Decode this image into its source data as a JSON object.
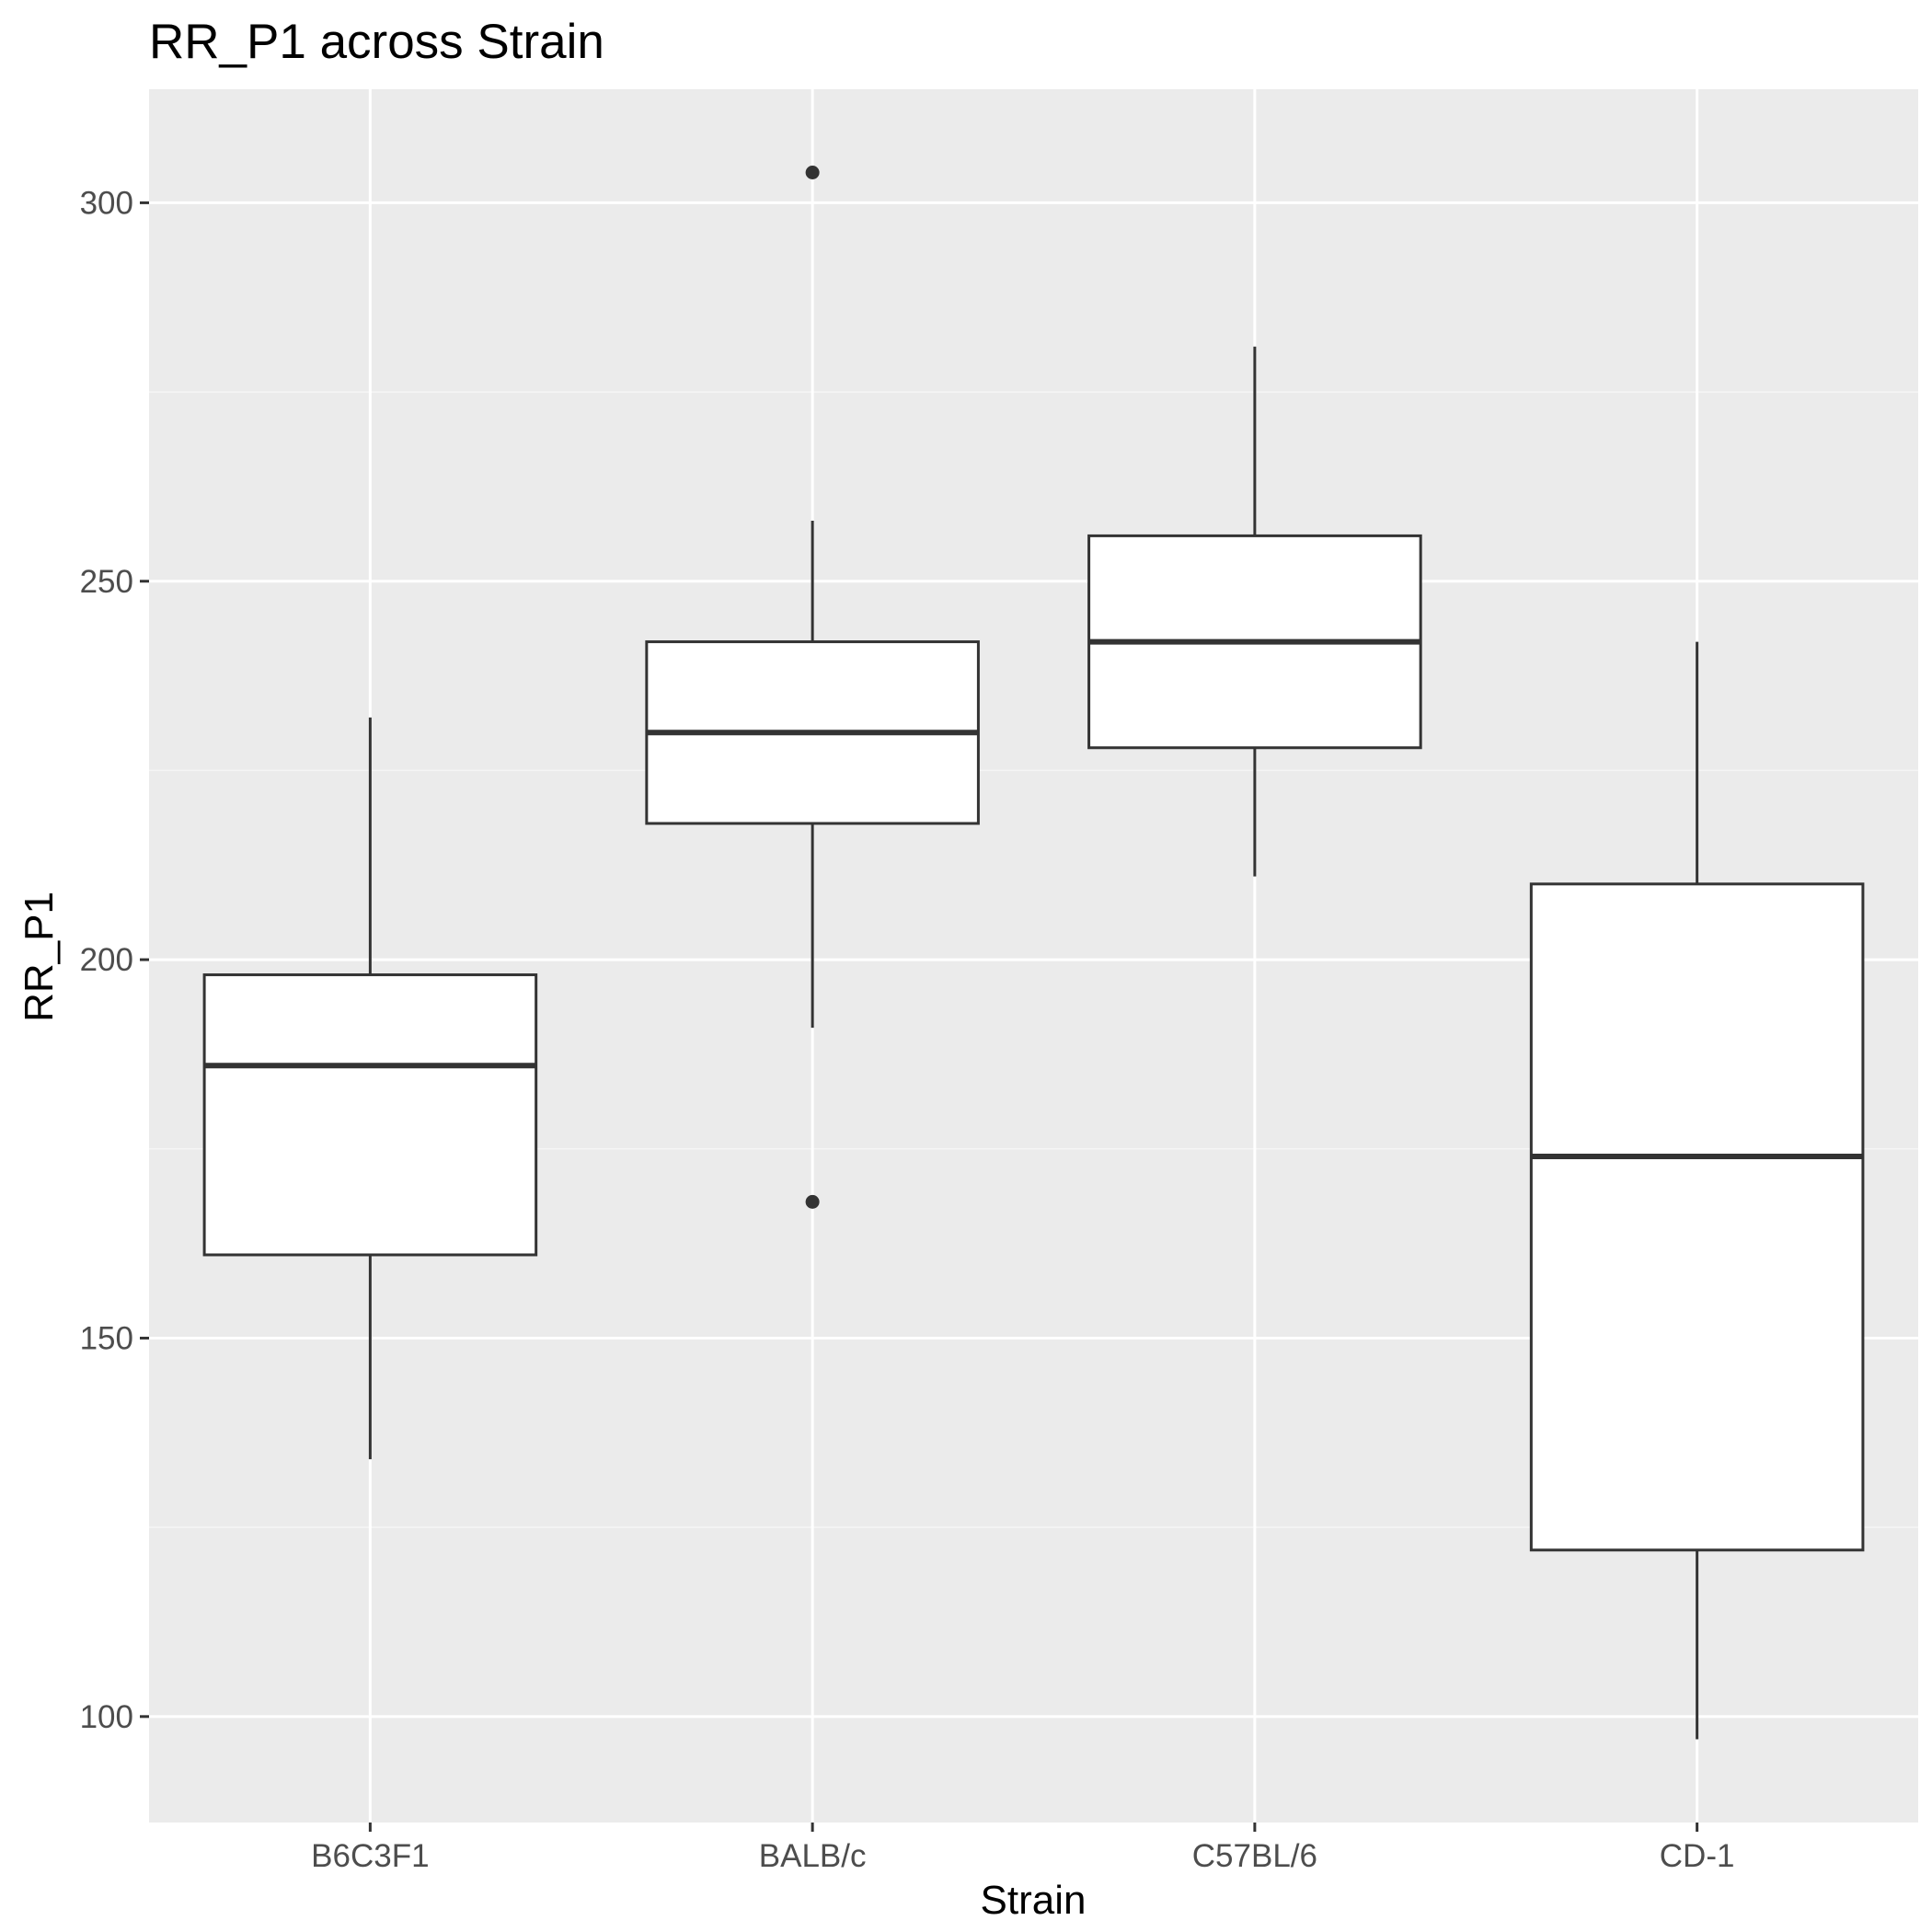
{
  "chart_data": {
    "type": "box",
    "title": "RR_P1 across Strain",
    "xlabel": "Strain",
    "ylabel": "RR_P1",
    "categories": [
      "B6C3F1",
      "BALB/c",
      "C57BL/6",
      "CD-1"
    ],
    "ylim": [
      86,
      315
    ],
    "y_ticks": [
      100,
      150,
      200,
      250,
      300
    ],
    "y_tick_labels": [
      "100",
      "150",
      "200",
      "250",
      "300"
    ],
    "grid": true,
    "legend": "none",
    "boxes": [
      {
        "category": "B6C3F1",
        "whisker_low": 134,
        "q1": 161,
        "median": 186,
        "q3": 198,
        "whisker_high": 232,
        "outliers": []
      },
      {
        "category": "BALB/c",
        "whisker_low": 191,
        "q1": 218,
        "median": 230,
        "q3": 242,
        "whisker_high": 258,
        "outliers": [
          168,
          304
        ]
      },
      {
        "category": "C57BL/6",
        "whisker_low": 211,
        "q1": 228,
        "median": 242,
        "q3": 256,
        "whisker_high": 281,
        "outliers": []
      },
      {
        "category": "CD-1",
        "whisker_low": 97,
        "q1": 122,
        "median": 174,
        "q3": 210,
        "whisker_high": 242,
        "outliers": []
      }
    ],
    "colors": {
      "panel_background": "#ebebeb",
      "grid_major": "#ffffff",
      "grid_minor": "#f5f5f5",
      "box_fill": "#ffffff",
      "box_line": "#333333",
      "tick_text": "#4d4d4d",
      "tick_mark": "#333333"
    }
  }
}
